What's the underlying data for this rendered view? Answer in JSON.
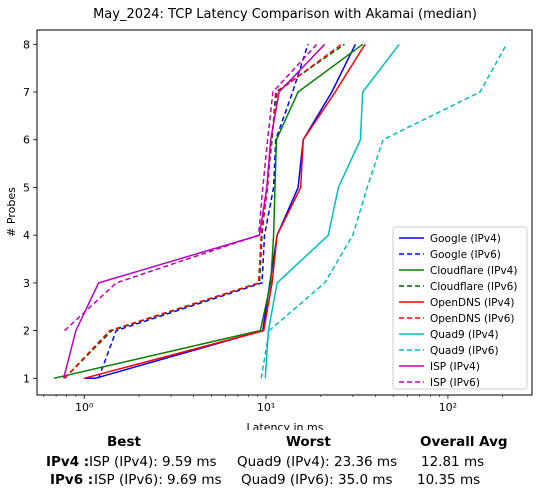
{
  "chart_data": {
    "type": "line",
    "title": "May_2024: TCP Latency Comparison with Akamai (median)",
    "xlabel": "Latency in ms",
    "ylabel": "# Probes",
    "xscale": "log",
    "xlim": [
      0.55,
      290
    ],
    "ylim": [
      0.65,
      8.3
    ],
    "xticks": [
      {
        "value": 1,
        "label": "10⁰"
      },
      {
        "value": 10,
        "label": "10¹"
      },
      {
        "value": 100,
        "label": "10²"
      }
    ],
    "yticks": [
      1,
      2,
      3,
      4,
      5,
      6,
      7,
      8
    ],
    "grid": false,
    "legend_position": "lower right",
    "series": [
      {
        "name": "Google (IPv4)",
        "color": "#0000ff",
        "dash": "solid",
        "points": [
          [
            1.0,
            1
          ],
          [
            1.15,
            1
          ],
          [
            9.6,
            2
          ],
          [
            10.5,
            3
          ],
          [
            11.5,
            4
          ],
          [
            15.0,
            5
          ],
          [
            16.0,
            6
          ],
          [
            23.0,
            7
          ],
          [
            31.0,
            8
          ]
        ]
      },
      {
        "name": "Google (IPv6)",
        "color": "#0000ff",
        "dash": "dashed",
        "points": [
          [
            1.2,
            1
          ],
          [
            1.5,
            2
          ],
          [
            9.5,
            3
          ],
          [
            9.8,
            4
          ],
          [
            11.0,
            5
          ],
          [
            11.3,
            6
          ],
          [
            14.0,
            7
          ],
          [
            17.0,
            8
          ]
        ]
      },
      {
        "name": "Cloudflare (IPv4)",
        "color": "#008000",
        "dash": "solid",
        "points": [
          [
            0.68,
            1
          ],
          [
            9.3,
            2
          ],
          [
            10.6,
            3
          ],
          [
            11.0,
            4
          ],
          [
            11.2,
            5
          ],
          [
            11.4,
            6
          ],
          [
            15.0,
            7
          ],
          [
            34.0,
            8
          ]
        ]
      },
      {
        "name": "Cloudflare (IPv6)",
        "color": "#006400",
        "dash": "dashed",
        "points": [
          [
            0.78,
            1
          ],
          [
            1.42,
            2
          ],
          [
            9.2,
            3
          ],
          [
            9.5,
            4
          ],
          [
            10.1,
            5
          ],
          [
            10.8,
            6
          ],
          [
            11.3,
            7
          ],
          [
            27.0,
            8
          ]
        ]
      },
      {
        "name": "OpenDNS (IPv4)",
        "color": "#ff0000",
        "dash": "solid",
        "points": [
          [
            1.0,
            1
          ],
          [
            9.7,
            2
          ],
          [
            10.8,
            3
          ],
          [
            11.5,
            4
          ],
          [
            15.5,
            5
          ],
          [
            16.0,
            6
          ],
          [
            24.0,
            7
          ],
          [
            35.0,
            8
          ]
        ]
      },
      {
        "name": "OpenDNS (IPv6)",
        "color": "#ff0000",
        "dash": "dashed",
        "points": [
          [
            0.78,
            1
          ],
          [
            1.38,
            2
          ],
          [
            9.1,
            3
          ],
          [
            9.4,
            4
          ],
          [
            10.2,
            5
          ],
          [
            10.7,
            6
          ],
          [
            11.5,
            7
          ],
          [
            26.0,
            8
          ]
        ]
      },
      {
        "name": "Quad9 (IPv4)",
        "color": "#00bfbf",
        "dash": "solid",
        "points": [
          [
            9.9,
            1
          ],
          [
            10.3,
            2
          ],
          [
            11.5,
            3
          ],
          [
            22.0,
            4
          ],
          [
            25.0,
            5
          ],
          [
            33.0,
            6
          ],
          [
            34.0,
            7
          ],
          [
            54.0,
            8
          ]
        ]
      },
      {
        "name": "Quad9 (IPv6)",
        "color": "#00bfbf",
        "dash": "dashed",
        "points": [
          [
            9.4,
            1
          ],
          [
            10.4,
            2
          ],
          [
            21.0,
            3
          ],
          [
            30.0,
            4
          ],
          [
            36.0,
            5
          ],
          [
            44.0,
            6
          ],
          [
            150.0,
            7
          ],
          [
            210.0,
            8
          ]
        ]
      },
      {
        "name": "ISP (IPv4)",
        "color": "#bf00bf",
        "dash": "solid",
        "points": [
          [
            0.77,
            1
          ],
          [
            0.9,
            2
          ],
          [
            1.2,
            3
          ],
          [
            9.2,
            4
          ],
          [
            10.1,
            5
          ],
          [
            10.6,
            6
          ],
          [
            11.8,
            7
          ],
          [
            21.0,
            8
          ]
        ]
      },
      {
        "name": "ISP (IPv6)",
        "color": "#bf00bf",
        "dash": "dashed",
        "points": [
          [
            0.78,
            2
          ],
          [
            1.5,
            3
          ],
          [
            9.1,
            4
          ],
          [
            9.6,
            5
          ],
          [
            10.2,
            6
          ],
          [
            10.9,
            7
          ],
          [
            19.0,
            8
          ]
        ]
      }
    ]
  },
  "summary": {
    "headers": {
      "best": "Best",
      "worst": "Worst",
      "avg": "Overall Avg"
    },
    "rows": [
      {
        "label": "IPv4 :",
        "best": "ISP (IPv4): 9.59 ms",
        "worst": "Quad9 (IPv4): 23.36 ms",
        "avg": "12.81 ms"
      },
      {
        "label": "IPv6 :",
        "best": "ISP (IPv6): 9.69 ms",
        "worst": "Quad9 (IPv6): 35.0 ms",
        "avg": "10.35 ms"
      }
    ]
  }
}
